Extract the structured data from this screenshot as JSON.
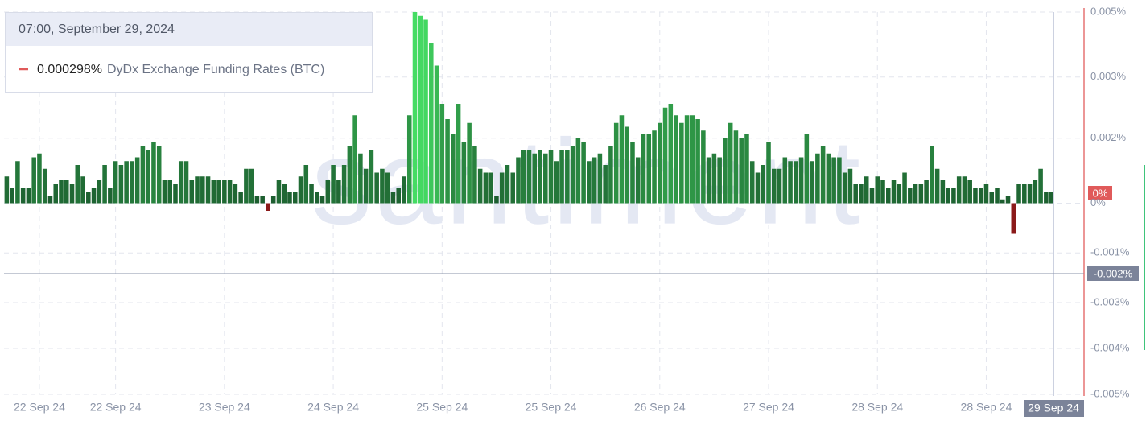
{
  "chart_data": {
    "type": "bar",
    "watermark": "santiment",
    "tooltip": {
      "date": "07:00, September 29, 2024",
      "value": "0.000298%",
      "series_name": "DyDx Exchange Funding Rates (BTC)"
    },
    "current_value_badge": "0%",
    "crosshair_y_label": "-0.002%",
    "crosshair_x_label": "29 Sep 24",
    "color_scale": [
      "#1b5a2e",
      "#45dc63"
    ],
    "negative_color": "#8b1a1a",
    "grid": true,
    "ylim": [
      -0.005,
      0.005
    ],
    "yticks": [
      {
        "value": 0.005,
        "label": "0.005%"
      },
      {
        "value": 0.0033,
        "label": "0.003%"
      },
      {
        "value": 0.0017,
        "label": "0.002%"
      },
      {
        "value": 0,
        "label": "0%"
      },
      {
        "value": -0.0013,
        "label": "-0.001%"
      },
      {
        "value": -0.0026,
        "label": "-0.003%"
      },
      {
        "value": -0.0038,
        "label": "-0.004%"
      },
      {
        "value": -0.005,
        "label": "-0.005%"
      }
    ],
    "categories": [
      null,
      null,
      null,
      null,
      null,
      null,
      "22 Sep 24",
      null,
      null,
      null,
      null,
      null,
      null,
      null,
      null,
      null,
      null,
      null,
      null,
      null,
      "22 Sep 24",
      null,
      null,
      null,
      null,
      null,
      null,
      null,
      null,
      null,
      null,
      null,
      null,
      null,
      null,
      null,
      null,
      null,
      null,
      null,
      "23 Sep 24",
      null,
      null,
      null,
      null,
      null,
      null,
      null,
      null,
      null,
      null,
      null,
      null,
      null,
      null,
      null,
      null,
      null,
      null,
      null,
      "24 Sep 24",
      null,
      null,
      null,
      null,
      null,
      null,
      null,
      null,
      null,
      null,
      null,
      null,
      null,
      null,
      null,
      null,
      null,
      null,
      null,
      "25 Sep 24",
      null,
      null,
      null,
      null,
      null,
      null,
      null,
      null,
      null,
      null,
      null,
      null,
      null,
      null,
      null,
      null,
      null,
      null,
      null,
      "25 Sep 24",
      null,
      null,
      null,
      null,
      null,
      null,
      null,
      null,
      null,
      null,
      null,
      null,
      null,
      null,
      null,
      null,
      null,
      null,
      null,
      "26 Sep 24",
      null,
      null,
      null,
      null,
      null,
      null,
      null,
      null,
      null,
      null,
      null,
      null,
      null,
      null,
      null,
      null,
      null,
      null,
      null,
      "27 Sep 24",
      null,
      null,
      null,
      null,
      null,
      null,
      null,
      null,
      null,
      null,
      null,
      null,
      null,
      null,
      null,
      null,
      null,
      null,
      null,
      "28 Sep 24",
      null,
      null,
      null,
      null,
      null,
      null,
      null,
      null,
      null,
      null,
      null,
      null,
      null,
      null,
      null,
      null,
      null,
      null,
      null,
      "28 Sep 24",
      null,
      null,
      null,
      null,
      null,
      null,
      null,
      null,
      null,
      null,
      null,
      null
    ],
    "values": [
      0.0007,
      0.0004,
      0.0011,
      0.0004,
      0.0004,
      0.0012,
      0.0013,
      0.0009,
      0.0002,
      0.0005,
      0.0006,
      0.0006,
      0.0005,
      0.001,
      0.0007,
      0.0003,
      0.0004,
      0.0006,
      0.001,
      0.0004,
      0.0011,
      0.001,
      0.0011,
      0.0011,
      0.0012,
      0.0015,
      0.0014,
      0.0016,
      0.0015,
      0.0006,
      0.0006,
      0.0005,
      0.0011,
      0.0011,
      0.0006,
      0.0007,
      0.0007,
      0.0007,
      0.0006,
      0.0006,
      0.0006,
      0.0006,
      0.0005,
      0.0003,
      0.0009,
      0.0009,
      0.0002,
      0.0002,
      -0.0002,
      0.0002,
      0.0006,
      0.0005,
      0.0003,
      0.0003,
      0.0007,
      0.001,
      0.0005,
      0.0003,
      0.0002,
      0.0006,
      0.001,
      0.0006,
      0.001,
      0.0015,
      0.0023,
      0.0013,
      0.0009,
      0.0014,
      0.0008,
      0.0009,
      0.0008,
      0.0003,
      0.0004,
      0.0007,
      0.0023,
      0.005,
      0.0049,
      0.0048,
      0.0042,
      0.0036,
      0.0026,
      0.0022,
      0.0018,
      0.0026,
      0.0016,
      0.0021,
      0.0015,
      0.0009,
      0.0008,
      0.0008,
      0.0002,
      0.0008,
      0.001,
      0.0008,
      0.0012,
      0.0014,
      0.0014,
      0.0013,
      0.0014,
      0.0013,
      0.0014,
      0.0011,
      0.0014,
      0.0014,
      0.0015,
      0.0017,
      0.0016,
      0.0011,
      0.0012,
      0.0013,
      0.001,
      0.0015,
      0.0021,
      0.0023,
      0.002,
      0.0016,
      0.0012,
      0.0018,
      0.0018,
      0.0019,
      0.0021,
      0.0025,
      0.0026,
      0.0023,
      0.0021,
      0.0023,
      0.0023,
      0.0022,
      0.0019,
      0.0012,
      0.0013,
      0.0012,
      0.0017,
      0.0021,
      0.0019,
      0.0017,
      0.0018,
      0.0011,
      0.0008,
      0.001,
      0.0016,
      0.0009,
      0.0009,
      0.0012,
      0.0011,
      0.0011,
      0.0012,
      0.0018,
      0.0011,
      0.0013,
      0.0015,
      0.0013,
      0.0012,
      0.0012,
      0.0008,
      0.0009,
      0.0005,
      0.0005,
      0.0007,
      0.0004,
      0.0007,
      0.0006,
      0.0004,
      0.0006,
      0.0005,
      0.0008,
      0.0004,
      0.0005,
      0.0005,
      0.0006,
      0.0015,
      0.0009,
      0.0006,
      0.0004,
      0.0004,
      0.0007,
      0.0007,
      0.0006,
      0.0004,
      0.0004,
      0.0005,
      0.0003,
      0.0004,
      0.0001,
      0.0002,
      -0.0008,
      0.0005,
      0.0005,
      0.0005,
      0.0006,
      0.0009,
      0.0003,
      0.000298
    ]
  }
}
